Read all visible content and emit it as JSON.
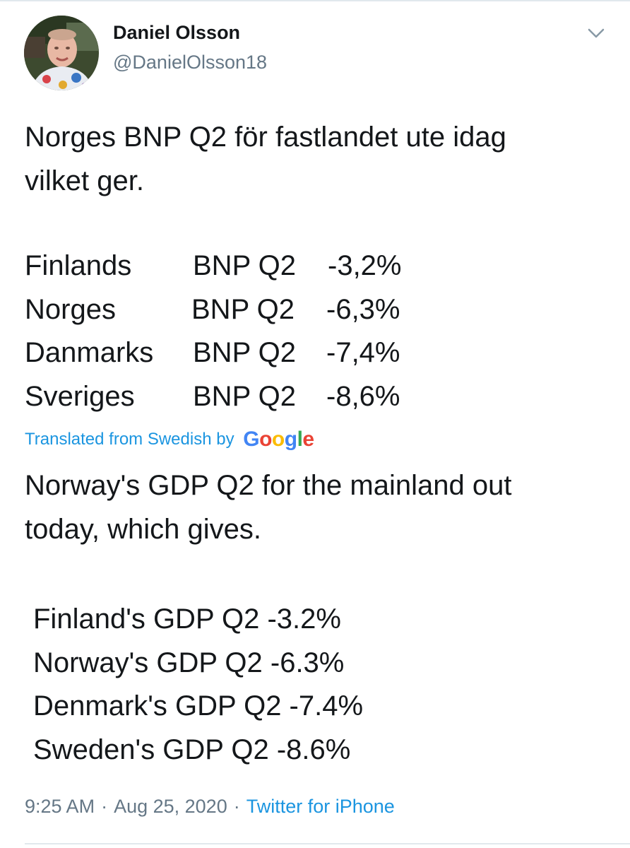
{
  "tweet": {
    "author": {
      "name": "Daniel Olsson",
      "handle": "@DanielOlsson18"
    },
    "original_text": {
      "line1": "Norges BNP Q2 för fastlandet ute idag",
      "line2": "vilket ger."
    },
    "original_rows": [
      {
        "country": "Finlands",
        "metric": "BNP Q2",
        "value": "-3,2%"
      },
      {
        "country": "Norges",
        "metric": "BNP Q2",
        "value": "-6,3%"
      },
      {
        "country": "Danmarks",
        "metric": "BNP Q2",
        "value": "-7,4%"
      },
      {
        "country": "Sveriges",
        "metric": "BNP Q2",
        "value": "-8,6%"
      }
    ],
    "translation": {
      "label": "Translated from Swedish by",
      "provider": "Google",
      "line1": "Norway's GDP Q2 for the mainland out",
      "line2": "today, which gives.",
      "rows": [
        "Finland's GDP Q2 -3.2%",
        "Norway's GDP Q2 -6.3%",
        "Denmark's GDP Q2 -7.4%",
        "Sweden's GDP Q2 -8.6%"
      ]
    },
    "time": "9:25 AM",
    "date": "Aug 25, 2020",
    "separator": "·",
    "source": "Twitter for iPhone"
  },
  "icons": {
    "menu": "chevron-down-icon",
    "avatar": "avatar-photo"
  },
  "colors": {
    "text": "#14171a",
    "secondary": "#657786",
    "link": "#1b95e0",
    "divider": "#e1e8ed",
    "google_blue": "#4285f4",
    "google_red": "#ea4335",
    "google_yellow": "#fbbc05",
    "google_green": "#34a853"
  }
}
